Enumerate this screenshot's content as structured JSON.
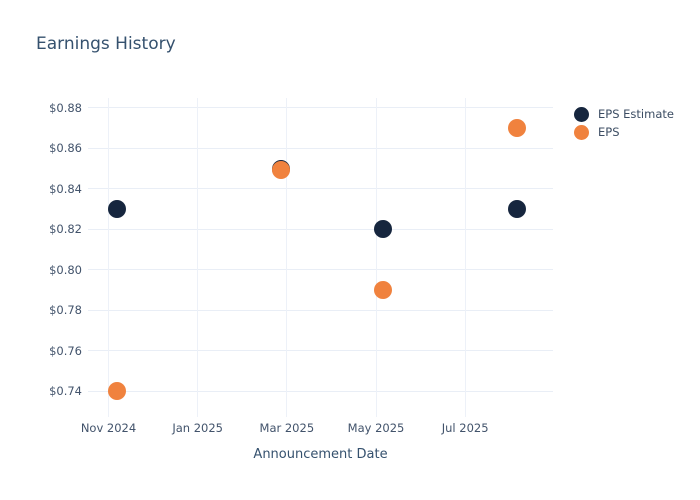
{
  "chart": {
    "title": "Earnings History"
  },
  "legend": {
    "items": [
      {
        "label": "EPS Estimate",
        "color": "#16263e"
      },
      {
        "label": "EPS",
        "color": "#f0823e"
      }
    ]
  },
  "chart_data": {
    "type": "scatter",
    "title": "Earnings History",
    "xlabel": "Announcement Date",
    "ylabel": "",
    "x_unit": "months since Nov 2024",
    "grid": true,
    "legend_position": "right",
    "xlim": [
      -0.46,
      9.97
    ],
    "ylim": [
      0.7274,
      0.8849
    ],
    "xticks": [
      {
        "x": 0,
        "label": "Nov 2024"
      },
      {
        "x": 2,
        "label": "Jan 2025"
      },
      {
        "x": 4,
        "label": "Mar 2025"
      },
      {
        "x": 6,
        "label": "May 2025"
      },
      {
        "x": 8,
        "label": "Jul 2025"
      }
    ],
    "yticks": [
      {
        "y": 0.74,
        "label": "$0.74"
      },
      {
        "y": 0.76,
        "label": "$0.76"
      },
      {
        "y": 0.78,
        "label": "$0.78"
      },
      {
        "y": 0.8,
        "label": "$0.80"
      },
      {
        "y": 0.82,
        "label": "$0.82"
      },
      {
        "y": 0.84,
        "label": "$0.84"
      },
      {
        "y": 0.86,
        "label": "$0.86"
      },
      {
        "y": 0.88,
        "label": "$0.88"
      }
    ],
    "series": [
      {
        "name": "EPS Estimate",
        "color": "#16263e",
        "points": [
          {
            "x": 0.18,
            "y": 0.83
          },
          {
            "x": 3.88,
            "y": 0.85
          },
          {
            "x": 6.16,
            "y": 0.82
          },
          {
            "x": 9.17,
            "y": 0.83
          }
        ]
      },
      {
        "name": "EPS",
        "color": "#f0823e",
        "points": [
          {
            "x": 0.18,
            "y": 0.74
          },
          {
            "x": 3.88,
            "y": 0.85
          },
          {
            "x": 6.16,
            "y": 0.79
          },
          {
            "x": 9.17,
            "y": 0.87
          }
        ]
      }
    ]
  }
}
